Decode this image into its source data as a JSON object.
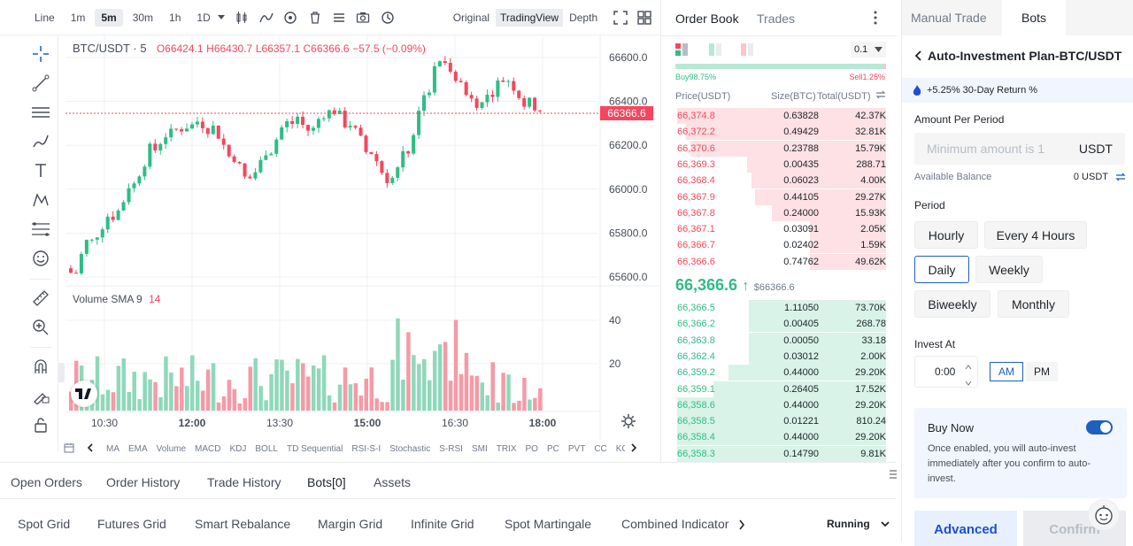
{
  "toolbar": {
    "timeframes": [
      "Line",
      "1m",
      "5m",
      "30m",
      "1h",
      "1D"
    ],
    "active_timeframe": "5m",
    "views": [
      "Original",
      "TradingView",
      "Depth"
    ],
    "active_view": "TradingView"
  },
  "legend": {
    "symbol": "BTC/USDT · 5",
    "open": "O66424.1",
    "high": "H66430.7",
    "low": "L66357.1",
    "close": "C66366.6",
    "change": "−57.5 (−0.09%)"
  },
  "volume_legend": {
    "label": "Volume SMA 9",
    "value": "14"
  },
  "chart_data": {
    "type": "candlestick",
    "y_ticks": [
      "66600.0",
      "66400.0",
      "66200.0",
      "66000.0",
      "65800.0",
      "65600.0"
    ],
    "last_price_tag": "66366.6",
    "x_ticks": [
      "10:30",
      "12:00",
      "13:30",
      "15:00",
      "16:30",
      "18:00"
    ],
    "volume_ticks": [
      "40",
      "20"
    ],
    "ylim": [
      65560,
      66660
    ]
  },
  "indicators": [
    "MA",
    "EMA",
    "Volume",
    "MACD",
    "KDJ",
    "BOLL",
    "TD Sequential",
    "RSI-S-I",
    "Stochastic",
    "S-RSI",
    "SMI",
    "TRIX",
    "PO",
    "PC",
    "PVT",
    "CC",
    "KC"
  ],
  "orderbook": {
    "tab_orderbook": "Order Book",
    "tab_trades": "Trades",
    "precision": "0.1",
    "buy_ratio": "Buy98.75%",
    "sell_ratio": "Sell1.25%",
    "col_price": "Price(USDT)",
    "col_size": "Size(BTC)",
    "col_total": "Total(USDT)",
    "asks": [
      {
        "price": "66,374.8",
        "size": "0.63828",
        "total": "42.37K",
        "depth": 0.99
      },
      {
        "price": "66,372.2",
        "size": "0.49429",
        "total": "32.81K",
        "depth": 0.95
      },
      {
        "price": "66,370.6",
        "size": "0.23788",
        "total": "15.79K",
        "depth": 0.93
      },
      {
        "price": "66,369.3",
        "size": "0.00435",
        "total": "288.71",
        "depth": 0.66
      },
      {
        "price": "66,368.4",
        "size": "0.06023",
        "total": "4.00K",
        "depth": 0.64
      },
      {
        "price": "66,367.9",
        "size": "0.44105",
        "total": "29.27K",
        "depth": 0.62
      },
      {
        "price": "66,367.8",
        "size": "0.24000",
        "total": "15.93K",
        "depth": 0.54
      },
      {
        "price": "66,367.1",
        "size": "0.03091",
        "total": "2.05K",
        "depth": 0.36
      },
      {
        "price": "66,366.7",
        "size": "0.02402",
        "total": "1.59K",
        "depth": 0.36
      },
      {
        "price": "66,366.6",
        "size": "0.74762",
        "total": "49.62K",
        "depth": 0.36
      }
    ],
    "last_price": "66,366.6",
    "last_price_arrow": "↑",
    "mark_price": "$66366.6",
    "bids": [
      {
        "price": "66,366.5",
        "size": "1.11050",
        "total": "73.70K",
        "depth": 0.65
      },
      {
        "price": "66,366.2",
        "size": "0.00405",
        "total": "268.78",
        "depth": 0.65
      },
      {
        "price": "66,363.8",
        "size": "0.00050",
        "total": "33.18",
        "depth": 0.65
      },
      {
        "price": "66,362.4",
        "size": "0.03012",
        "total": "2.00K",
        "depth": 0.65
      },
      {
        "price": "66,359.2",
        "size": "0.44000",
        "total": "29.20K",
        "depth": 0.75
      },
      {
        "price": "66,359.1",
        "size": "0.26405",
        "total": "17.52K",
        "depth": 0.82
      },
      {
        "price": "66,358.6",
        "size": "0.44000",
        "total": "29.20K",
        "depth": 0.99
      },
      {
        "price": "66,358.5",
        "size": "0.01221",
        "total": "810.24",
        "depth": 0.99
      },
      {
        "price": "66,358.4",
        "size": "0.44000",
        "total": "29.20K",
        "depth": 0.99
      },
      {
        "price": "66,358.3",
        "size": "0.14790",
        "total": "9.81K",
        "depth": 0.99
      }
    ]
  },
  "panel": {
    "tab_manual": "Manual Trade",
    "tab_bots": "Bots",
    "title": "Auto-Investment Plan-BTC/USDT",
    "return_text": "+5.25% 30-Day Return %",
    "amount_label": "Amount Per Period",
    "amount_placeholder": "Minimum amount is 1",
    "amount_unit": "USDT",
    "balance_label": "Available Balance",
    "balance_value": "0 USDT",
    "period_label": "Period",
    "periods": [
      "Hourly",
      "Every 4 Hours",
      "Daily",
      "Weekly",
      "Biweekly",
      "Monthly"
    ],
    "selected_period": "Daily",
    "invest_at_label": "Invest At",
    "invest_time": "0:00",
    "am": "AM",
    "pm": "PM",
    "buy_now_title": "Buy Now",
    "buy_now_desc": "Once enabled, you will auto-invest immediately after you confirm to auto-invest.",
    "buy_now_enabled": true,
    "advanced_label": "Advanced",
    "confirm_label": "Confirm"
  },
  "bottom": {
    "tabs": [
      "Open Orders",
      "Order History",
      "Trade History",
      "Bots[0]",
      "Assets"
    ],
    "active_tab": "Bots[0]",
    "subtabs": [
      "Spot Grid",
      "Futures Grid",
      "Smart Rebalance",
      "Margin Grid",
      "Infinite Grid",
      "Spot Martingale",
      "Combined Indicator"
    ],
    "status_select": "Running"
  },
  "colors": {
    "up": "#2ebd85",
    "down": "#f6465d",
    "accent": "#1f5fbd",
    "brand_blue": "#1d4ed8"
  }
}
